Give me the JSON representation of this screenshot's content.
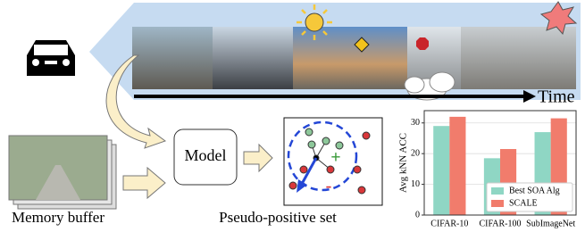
{
  "time_label": "Time",
  "model_label": "Model",
  "memory_label": "Memory buffer",
  "set_label": "Pseudo-positive set",
  "plus_sign": "+",
  "minus_sign": "-",
  "chart_data": {
    "type": "bar",
    "ylabel": "Avg kNN ACC",
    "categories": [
      "CIFAR-10",
      "CIFAR-100",
      "SubImageNet"
    ],
    "series": [
      {
        "name": "Best SOA Alg",
        "color": "#8fd6c4",
        "values": [
          29,
          18.5,
          27
        ]
      },
      {
        "name": "SCALE",
        "color": "#f17c6c",
        "values": [
          32,
          21.5,
          31.5
        ]
      }
    ],
    "ylim": [
      0,
      34
    ],
    "yticks": [
      0,
      10,
      20,
      30
    ],
    "grid": true,
    "legend": "lower right"
  }
}
